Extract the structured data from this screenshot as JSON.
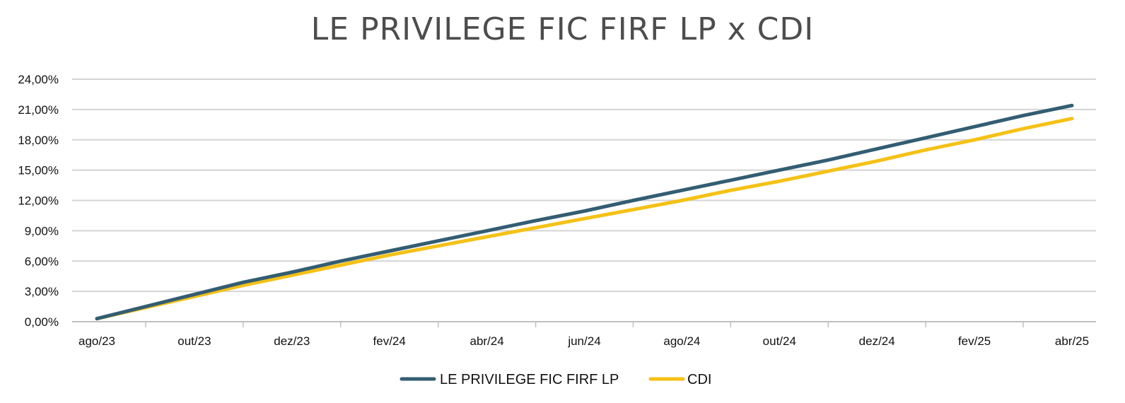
{
  "chart_data": {
    "type": "line",
    "title": "LE PRIVILEGE FIC FIRF LP x CDI",
    "xlabel": "",
    "ylabel": "",
    "ylim": [
      0,
      24
    ],
    "yticks": [
      "0,00%",
      "3,00%",
      "6,00%",
      "9,00%",
      "12,00%",
      "15,00%",
      "18,00%",
      "21,00%",
      "24,00%"
    ],
    "xtick_labels": [
      "ago/23",
      "out/23",
      "dez/23",
      "fev/24",
      "abr/24",
      "jun/24",
      "ago/24",
      "out/24",
      "dez/24",
      "fev/25",
      "abr/25"
    ],
    "x": [
      "ago/23",
      "set/23",
      "out/23",
      "nov/23",
      "dez/23",
      "jan/24",
      "fev/24",
      "mar/24",
      "abr/24",
      "mai/24",
      "jun/24",
      "jul/24",
      "ago/24",
      "set/24",
      "out/24",
      "nov/24",
      "dez/24",
      "jan/25",
      "fev/25",
      "mar/25",
      "abr/25"
    ],
    "series": [
      {
        "name": "LE PRIVILEGE FIC FIRF LP",
        "color": "#335d72",
        "values": [
          0.3,
          1.5,
          2.7,
          3.9,
          4.9,
          6.0,
          7.0,
          8.0,
          9.0,
          10.0,
          10.95,
          12.0,
          13.0,
          14.0,
          15.0,
          16.0,
          17.1,
          18.2,
          19.3,
          20.4,
          21.4
        ]
      },
      {
        "name": "CDI",
        "color": "#f5c116",
        "values": [
          0.3,
          1.4,
          2.5,
          3.6,
          4.6,
          5.6,
          6.6,
          7.5,
          8.4,
          9.3,
          10.2,
          11.1,
          12.0,
          13.0,
          13.9,
          14.9,
          15.9,
          17.0,
          18.0,
          19.1,
          20.1
        ]
      }
    ],
    "grid": true,
    "legend_position": "bottom-center"
  }
}
